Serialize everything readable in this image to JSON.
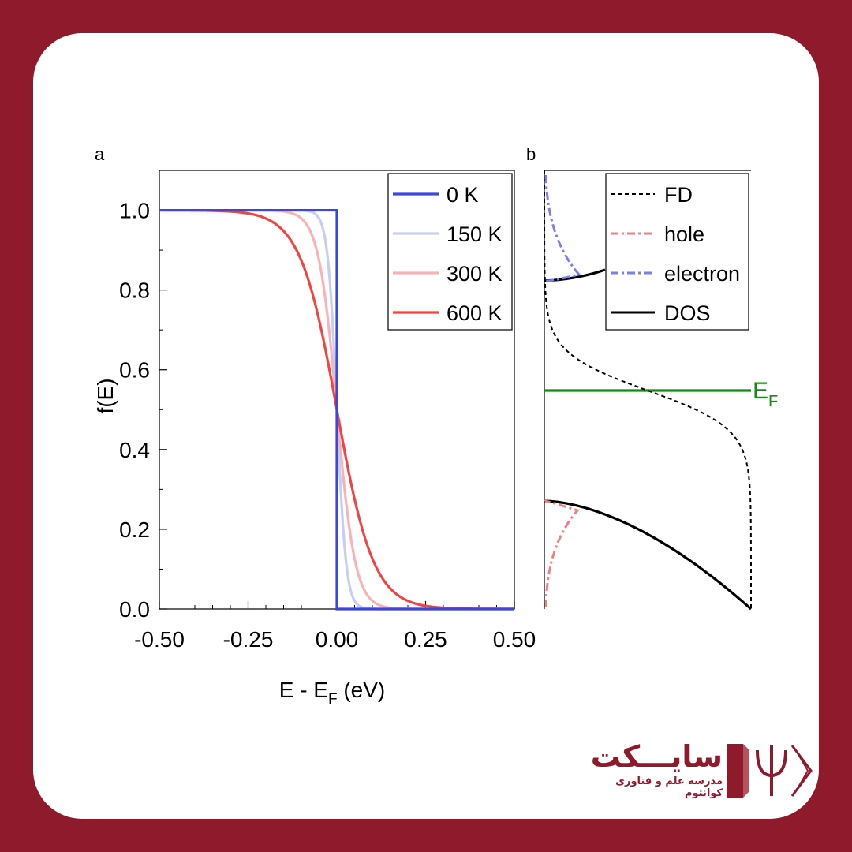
{
  "colors": {
    "background": "#8f1a2c",
    "card": "#ffffff",
    "brand": "#8f1a2c"
  },
  "brand": {
    "title": "سایـــکت",
    "subtitle": "مدرسه علم و فناوری کوانتوم",
    "icon": "psi-book-logo-icon"
  },
  "chart_data": [
    {
      "type": "line",
      "panel_label": "a",
      "xlabel_main": "E - E",
      "xlabel_sub": "F",
      "xlabel_unit": " (eV)",
      "ylabel": "f(E)",
      "xlim": [
        -0.5,
        0.5
      ],
      "ylim": [
        0,
        1.1
      ],
      "xticks": [
        {
          "v": -0.5,
          "label": "-0.50"
        },
        {
          "v": -0.25,
          "label": "-0.25"
        },
        {
          "v": 0,
          "label": "0.00"
        },
        {
          "v": 0.25,
          "label": "0.25"
        },
        {
          "v": 0.5,
          "label": "0.50"
        }
      ],
      "yticks": [
        {
          "v": 0,
          "label": "0.0"
        },
        {
          "v": 0.2,
          "label": "0.2"
        },
        {
          "v": 0.4,
          "label": "0.4"
        },
        {
          "v": 0.6,
          "label": "0.6"
        },
        {
          "v": 0.8,
          "label": "0.8"
        },
        {
          "v": 1.0,
          "label": "1.0"
        }
      ],
      "legend_position": "top-right",
      "series": [
        {
          "name": "0 K",
          "temperature_K": 0,
          "color": "#3a48e0"
        },
        {
          "name": "150 K",
          "temperature_K": 150,
          "color": "#c6cdf6"
        },
        {
          "name": "300 K",
          "temperature_K": 300,
          "color": "#f8b4b4"
        },
        {
          "name": "600 K",
          "temperature_K": 600,
          "color": "#ef4545"
        }
      ]
    },
    {
      "type": "line",
      "panel_label": "b",
      "annotation_main": "E",
      "annotation_sub": "F",
      "legend_position": "top-right",
      "series": [
        {
          "name": "FD",
          "style": "dashed",
          "color": "#000000"
        },
        {
          "name": "hole",
          "style": "dash-dot",
          "color": "#f08080"
        },
        {
          "name": "electron",
          "style": "dash-dot",
          "color": "#7b7ef0"
        },
        {
          "name": "DOS",
          "style": "solid",
          "color": "#000000"
        }
      ],
      "fermi_line_color": "#168a16"
    }
  ]
}
